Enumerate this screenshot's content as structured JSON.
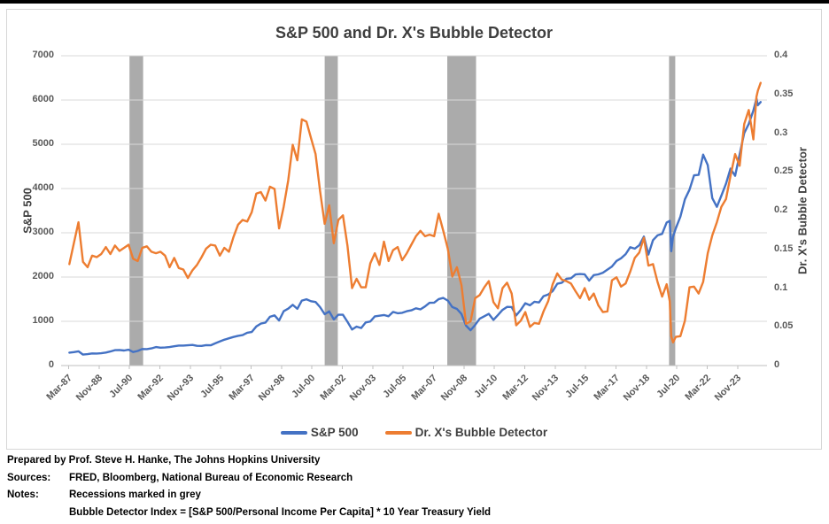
{
  "colors": {
    "sp500": "#4472C4",
    "bubble_detector": "#ED7D31",
    "recession_band": "#ABABAB",
    "gridline": "#D9D9D9",
    "axis_line": "#BFBFBF",
    "axis_text": "#595959",
    "title_text": "#3E3E3E"
  },
  "legend": {
    "items": [
      {
        "label": "S&P 500",
        "color": "#4472C4"
      },
      {
        "label": "Dr. X's Bubble Detector",
        "color": "#ED7D31"
      }
    ]
  },
  "footer": {
    "prepared_by": "Prepared by Prof. Steve H. Hanke, The Johns Hopkins University",
    "sources_label": "Sources:",
    "sources_text": "FRED, Bloomberg, National Bureau of Economic Research",
    "notes_label": "Notes:",
    "note_line1": "Recessions marked in grey",
    "note_line2": "Bubble Detector Index = [S&P 500/Personal Income Per Capita] * 10 Year Treasury Yield"
  },
  "chart_data": {
    "type": "line",
    "title": "S&P 500 and Dr. X's Bubble Detector",
    "left_axis": {
      "label": "S&P 500",
      "min": 0,
      "max": 7000,
      "tick_step": 1000
    },
    "right_axis": {
      "label": "Dr. X's Bubble Detector",
      "min": 0,
      "max": 0.4,
      "tick_step": 0.05
    },
    "x_domain": [
      1986.75,
      2025.45
    ],
    "x_tick_start": 1987.167,
    "x_tick_step": 1.667,
    "x_tick_labels": [
      "Mar-87",
      "Nov-88",
      "Jul-90",
      "Mar-92",
      "Nov-93",
      "Jul-95",
      "Mar-97",
      "Nov-98",
      "Jul-00",
      "Mar-02",
      "Nov-03",
      "Jul-05",
      "Mar-07",
      "Nov-08",
      "Jul-10",
      "Mar-12",
      "Nov-13",
      "Jul-15",
      "Mar-17",
      "Nov-18",
      "Jul-20",
      "Mar-22",
      "Nov-23"
    ],
    "recessions": [
      [
        1990.5,
        1991.25
      ],
      [
        2001.2,
        2001.92
      ],
      [
        2007.92,
        2009.5
      ],
      [
        2020.08,
        2020.42
      ]
    ],
    "grid": true,
    "legend_position": "bottom",
    "x": [
      1987.2,
      1987.45,
      1987.7,
      1987.95,
      1988.2,
      1988.45,
      1988.7,
      1988.95,
      1989.2,
      1989.45,
      1989.7,
      1989.95,
      1990.2,
      1990.45,
      1990.7,
      1990.95,
      1991.2,
      1991.45,
      1991.7,
      1991.95,
      1992.2,
      1992.45,
      1992.7,
      1992.95,
      1993.2,
      1993.45,
      1993.7,
      1993.95,
      1994.2,
      1994.45,
      1994.7,
      1994.95,
      1995.2,
      1995.45,
      1995.7,
      1995.95,
      1996.2,
      1996.45,
      1996.7,
      1996.95,
      1997.2,
      1997.45,
      1997.7,
      1997.95,
      1998.2,
      1998.45,
      1998.7,
      1998.95,
      1999.2,
      1999.45,
      1999.7,
      1999.95,
      2000.2,
      2000.45,
      2000.7,
      2000.95,
      2001.2,
      2001.45,
      2001.7,
      2001.95,
      2002.2,
      2002.45,
      2002.7,
      2002.95,
      2003.2,
      2003.45,
      2003.7,
      2003.95,
      2004.2,
      2004.45,
      2004.7,
      2004.95,
      2005.2,
      2005.45,
      2005.7,
      2005.95,
      2006.2,
      2006.45,
      2006.7,
      2006.95,
      2007.2,
      2007.45,
      2007.7,
      2007.95,
      2008.2,
      2008.45,
      2008.7,
      2008.95,
      2009.2,
      2009.45,
      2009.7,
      2009.95,
      2010.2,
      2010.45,
      2010.7,
      2010.95,
      2011.2,
      2011.45,
      2011.7,
      2011.95,
      2012.2,
      2012.45,
      2012.7,
      2012.95,
      2013.2,
      2013.45,
      2013.7,
      2013.95,
      2014.2,
      2014.45,
      2014.7,
      2014.95,
      2015.2,
      2015.45,
      2015.7,
      2015.95,
      2016.2,
      2016.45,
      2016.7,
      2016.95,
      2017.2,
      2017.45,
      2017.7,
      2017.95,
      2018.2,
      2018.45,
      2018.7,
      2018.95,
      2019.2,
      2019.45,
      2019.7,
      2019.95,
      2020.12,
      2020.2,
      2020.3,
      2020.45,
      2020.7,
      2020.95,
      2021.2,
      2021.45,
      2021.7,
      2021.95,
      2022.2,
      2022.45,
      2022.7,
      2022.95,
      2023.2,
      2023.45,
      2023.7,
      2023.95,
      2024.2,
      2024.45,
      2024.7,
      2024.87,
      2024.95,
      2025.1
    ],
    "series": [
      {
        "name": "S&P 500",
        "axis": "left",
        "color": "#4472C4",
        "values": [
          292,
          304,
          322,
          247,
          259,
          274,
          272,
          278,
          295,
          318,
          349,
          353,
          340,
          358,
          306,
          330,
          375,
          371,
          388,
          417,
          404,
          408,
          418,
          436,
          452,
          451,
          459,
          466,
          446,
          444,
          463,
          459,
          501,
          545,
          584,
          616,
          646,
          671,
          687,
          741,
          757,
          885,
          947,
          970,
          1102,
          1134,
          1017,
          1229,
          1286,
          1373,
          1283,
          1469,
          1499,
          1455,
          1436,
          1320,
          1160,
          1224,
          1041,
          1148,
          1147,
          990,
          815,
          880,
          848,
          975,
          996,
          1112,
          1126,
          1141,
          1115,
          1212,
          1181,
          1191,
          1229,
          1248,
          1295,
          1270,
          1336,
          1418,
          1421,
          1503,
          1527,
          1468,
          1323,
          1280,
          1166,
          903,
          798,
          919,
          1057,
          1115,
          1169,
          1031,
          1141,
          1258,
          1326,
          1321,
          1131,
          1258,
          1408,
          1362,
          1441,
          1426,
          1569,
          1606,
          1682,
          1848,
          1872,
          1960,
          1972,
          2059,
          2068,
          2063,
          1920,
          2044,
          2060,
          2099,
          2168,
          2239,
          2363,
          2423,
          2519,
          2674,
          2641,
          2718,
          2914,
          2507,
          2834,
          2942,
          2977,
          3231,
          3270,
          2585,
          2912,
          3100,
          3363,
          3756,
          3973,
          4298,
          4308,
          4766,
          4530,
          3785,
          3586,
          3840,
          4109,
          4450,
          4288,
          4770,
          5254,
          5460,
          5762,
          6032,
          5882,
          5955
        ]
      },
      {
        "name": "Dr. X's Bubble Detector",
        "axis": "right",
        "color": "#ED7D31",
        "values": [
          0.131,
          0.158,
          0.185,
          0.134,
          0.127,
          0.142,
          0.14,
          0.144,
          0.153,
          0.144,
          0.155,
          0.148,
          0.152,
          0.156,
          0.138,
          0.135,
          0.152,
          0.154,
          0.147,
          0.145,
          0.147,
          0.142,
          0.127,
          0.139,
          0.126,
          0.124,
          0.113,
          0.123,
          0.13,
          0.14,
          0.151,
          0.156,
          0.155,
          0.142,
          0.152,
          0.147,
          0.166,
          0.182,
          0.188,
          0.186,
          0.198,
          0.222,
          0.224,
          0.213,
          0.231,
          0.228,
          0.177,
          0.205,
          0.239,
          0.285,
          0.265,
          0.318,
          0.315,
          0.294,
          0.273,
          0.225,
          0.183,
          0.207,
          0.158,
          0.188,
          0.194,
          0.155,
          0.1,
          0.112,
          0.101,
          0.101,
          0.132,
          0.145,
          0.13,
          0.16,
          0.135,
          0.149,
          0.153,
          0.136,
          0.145,
          0.156,
          0.167,
          0.174,
          0.167,
          0.169,
          0.167,
          0.196,
          0.174,
          0.151,
          0.115,
          0.127,
          0.104,
          0.054,
          0.057,
          0.087,
          0.091,
          0.101,
          0.109,
          0.082,
          0.074,
          0.1,
          0.107,
          0.093,
          0.052,
          0.058,
          0.069,
          0.05,
          0.055,
          0.054,
          0.07,
          0.083,
          0.105,
          0.119,
          0.111,
          0.109,
          0.106,
          0.096,
          0.087,
          0.1,
          0.085,
          0.093,
          0.078,
          0.069,
          0.07,
          0.11,
          0.114,
          0.102,
          0.106,
          0.121,
          0.139,
          0.146,
          0.165,
          0.129,
          0.131,
          0.108,
          0.089,
          0.105,
          0.083,
          0.038,
          0.03,
          0.037,
          0.038,
          0.058,
          0.101,
          0.102,
          0.093,
          0.108,
          0.145,
          0.168,
          0.185,
          0.205,
          0.215,
          0.245,
          0.273,
          0.258,
          0.312,
          0.33,
          0.292,
          0.347,
          0.355,
          0.365
        ]
      }
    ]
  }
}
